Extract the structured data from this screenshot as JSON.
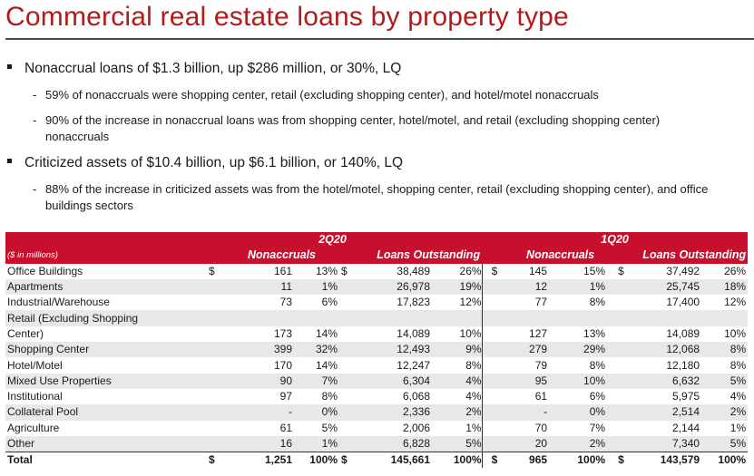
{
  "title": "Commercial real estate loans by property type",
  "bullets": [
    {
      "text": "Nonaccrual loans of $1.3 billion, up $286 million, or 30%, LQ",
      "subs": [
        "59% of nonaccruals were shopping center, retail (excluding shopping center), and hotel/motel nonaccruals",
        "90% of the increase in nonaccrual loans was from shopping center, hotel/motel, and retail (excluding shopping center) nonaccruals"
      ]
    },
    {
      "text": "Criticized assets of $10.4 billion, up $6.1 billion, or 140%, LQ",
      "subs": [
        "88% of the increase in criticized assets was from the hotel/motel, shopping center, retail (excluding shopping center), and office buildings sectors"
      ]
    }
  ],
  "table": {
    "periods": [
      "2Q20",
      "1Q20"
    ],
    "unit_label": "($ in millions)",
    "col_headers": [
      "Nonaccruals",
      "Loans Outstanding",
      "Nonaccruals",
      "Loans Outstanding"
    ],
    "dollar": "$",
    "rows": [
      {
        "label": "Office Buildings",
        "first": true,
        "v": [
          "161",
          "13%",
          "38,489",
          "26%",
          "145",
          "15%",
          "37,492",
          "26%"
        ]
      },
      {
        "label": "Apartments",
        "v": [
          "11",
          "1%",
          "26,978",
          "19%",
          "12",
          "1%",
          "25,745",
          "18%"
        ]
      },
      {
        "label": "Industrial/Warehouse",
        "v": [
          "73",
          "6%",
          "17,823",
          "12%",
          "77",
          "8%",
          "17,400",
          "12%"
        ]
      },
      {
        "label": "Retail (Excluding Shopping",
        "label_only": true
      },
      {
        "label": "Center)",
        "v": [
          "173",
          "14%",
          "14,089",
          "10%",
          "127",
          "13%",
          "14,089",
          "10%"
        ]
      },
      {
        "label": "Shopping Center",
        "v": [
          "399",
          "32%",
          "12,493",
          "9%",
          "279",
          "29%",
          "12,068",
          "8%"
        ]
      },
      {
        "label": "Hotel/Motel",
        "v": [
          "170",
          "14%",
          "12,247",
          "8%",
          "79",
          "8%",
          "12,180",
          "8%"
        ]
      },
      {
        "label": "Mixed Use Properties",
        "v": [
          "90",
          "7%",
          "6,304",
          "4%",
          "95",
          "10%",
          "6,632",
          "5%"
        ]
      },
      {
        "label": "Institutional",
        "v": [
          "97",
          "8%",
          "6,068",
          "4%",
          "61",
          "6%",
          "5,975",
          "4%"
        ]
      },
      {
        "label": "Collateral Pool",
        "v": [
          "-",
          "0%",
          "2,336",
          "2%",
          "-",
          "0%",
          "2,514",
          "2%"
        ]
      },
      {
        "label": "Agriculture",
        "v": [
          "61",
          "5%",
          "2,006",
          "1%",
          "70",
          "7%",
          "2,144",
          "1%"
        ]
      },
      {
        "label": "Other",
        "v": [
          "16",
          "1%",
          "6,828",
          "5%",
          "20",
          "2%",
          "7,340",
          "5%"
        ]
      },
      {
        "label": "Total",
        "first": true,
        "v": [
          "1,251",
          "100%",
          "145,661",
          "100%",
          "965",
          "100%",
          "143,579",
          "100%"
        ]
      }
    ]
  }
}
